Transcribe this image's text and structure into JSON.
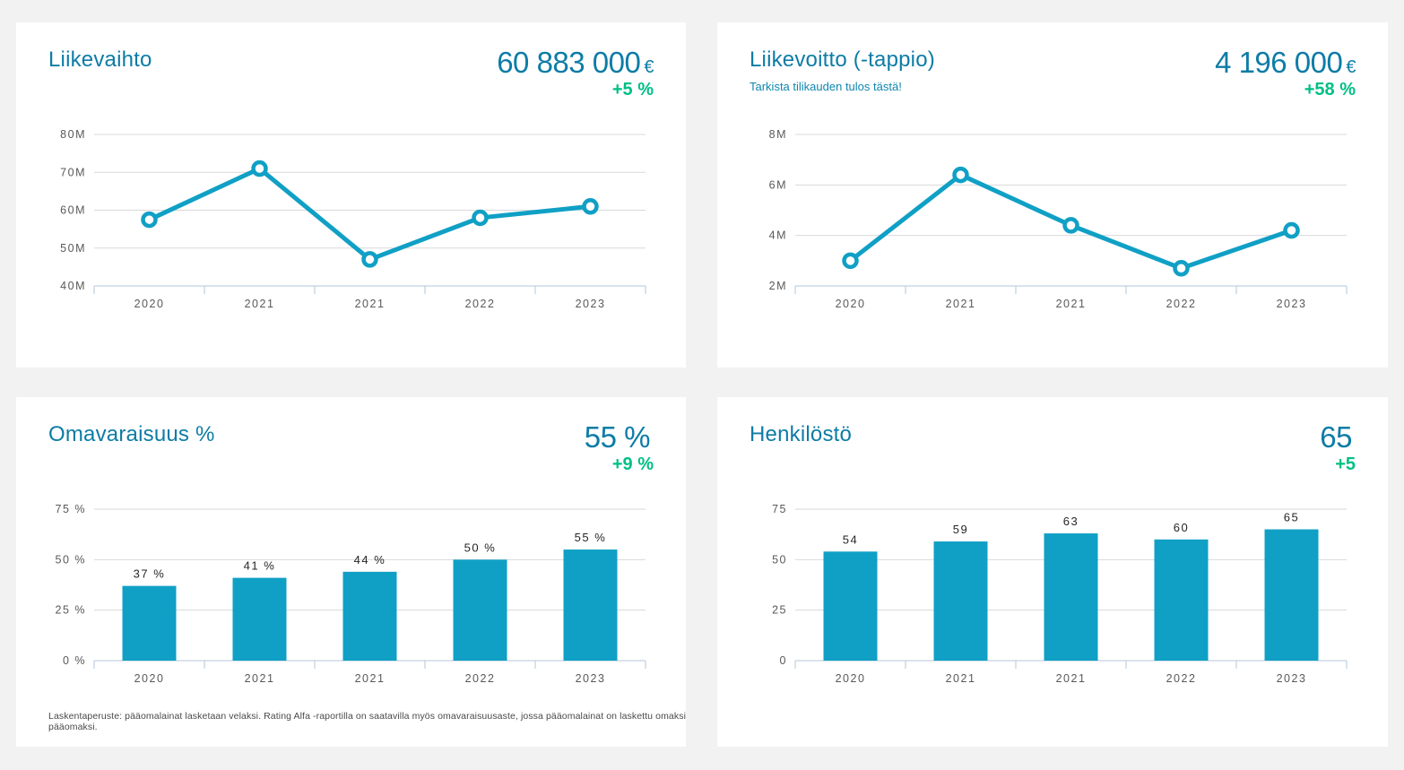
{
  "colors": {
    "accent_teal": "#0d7ca6",
    "series_teal": "#10a0c5",
    "delta_green": "#00bf85",
    "gridline": "#d9d9d9",
    "axis_line": "#b3c7d9",
    "axis_text": "#595959",
    "card_bg": "#ffffff",
    "page_bg": "#f2f2f2"
  },
  "cards": [
    {
      "title": "Liikevaihto",
      "value": "60 883 000",
      "unit": "€",
      "delta": "+5 %"
    },
    {
      "title": "Liikevoitto (-tappio)",
      "subtitle": "Tarkista tilikauden tulos tästä!",
      "value": "4 196 000",
      "unit": "€",
      "delta": "+58 %"
    },
    {
      "title": "Omavaraisuus %",
      "value": "55 %",
      "unit": "",
      "delta": "+9 %",
      "footnote": "Laskentaperuste: pääomalainat lasketaan velaksi. Rating Alfa -raportilla on saatavilla myös omavaraisuusaste, jossa pääomalainat on laskettu omaksi pääomaksi."
    },
    {
      "title": "Henkilöstö",
      "value": "65",
      "unit": "",
      "delta": "+5"
    }
  ],
  "chart_data": [
    {
      "id": "liikevaihto",
      "type": "line",
      "title": "Liikevaihto",
      "unit": "M€",
      "categories": [
        "2020",
        "2021",
        "2021",
        "2022",
        "2023"
      ],
      "values": [
        57.5,
        71,
        47,
        58,
        61
      ],
      "ylim": [
        40,
        80
      ],
      "ytick_values": [
        40,
        50,
        60,
        70,
        80
      ],
      "ytick_labels": [
        "40M",
        "50M",
        "60M",
        "70M",
        "80M"
      ],
      "grid": true,
      "legend": false
    },
    {
      "id": "liikevoitto",
      "type": "line",
      "title": "Liikevoitto (-tappio)",
      "unit": "M€",
      "categories": [
        "2020",
        "2021",
        "2021",
        "2022",
        "2023"
      ],
      "values": [
        3.0,
        6.4,
        4.4,
        2.7,
        4.2
      ],
      "ylim": [
        2,
        8
      ],
      "ytick_values": [
        2,
        4,
        6,
        8
      ],
      "ytick_labels": [
        "2M",
        "4M",
        "6M",
        "8M"
      ],
      "grid": true,
      "legend": false
    },
    {
      "id": "omavaraisuus",
      "type": "bar",
      "title": "Omavaraisuus %",
      "unit": "%",
      "categories": [
        "2020",
        "2021",
        "2021",
        "2022",
        "2023"
      ],
      "values": [
        37,
        41,
        44,
        50,
        55
      ],
      "bar_labels": [
        "37 %",
        "41 %",
        "44 %",
        "50 %",
        "55 %"
      ],
      "ylim": [
        0,
        75
      ],
      "ytick_values": [
        0,
        25,
        50,
        75
      ],
      "ytick_labels": [
        "0 %",
        "25 %",
        "50 %",
        "75 %"
      ],
      "grid": true,
      "legend": false
    },
    {
      "id": "henkilosto",
      "type": "bar",
      "title": "Henkilöstö",
      "unit": "",
      "categories": [
        "2020",
        "2021",
        "2021",
        "2022",
        "2023"
      ],
      "values": [
        54,
        59,
        63,
        60,
        65
      ],
      "bar_labels": [
        "54",
        "59",
        "63",
        "60",
        "65"
      ],
      "ylim": [
        0,
        75
      ],
      "ytick_values": [
        0,
        25,
        50,
        75
      ],
      "ytick_labels": [
        "0",
        "25",
        "50",
        "75"
      ],
      "grid": true,
      "legend": false
    }
  ]
}
